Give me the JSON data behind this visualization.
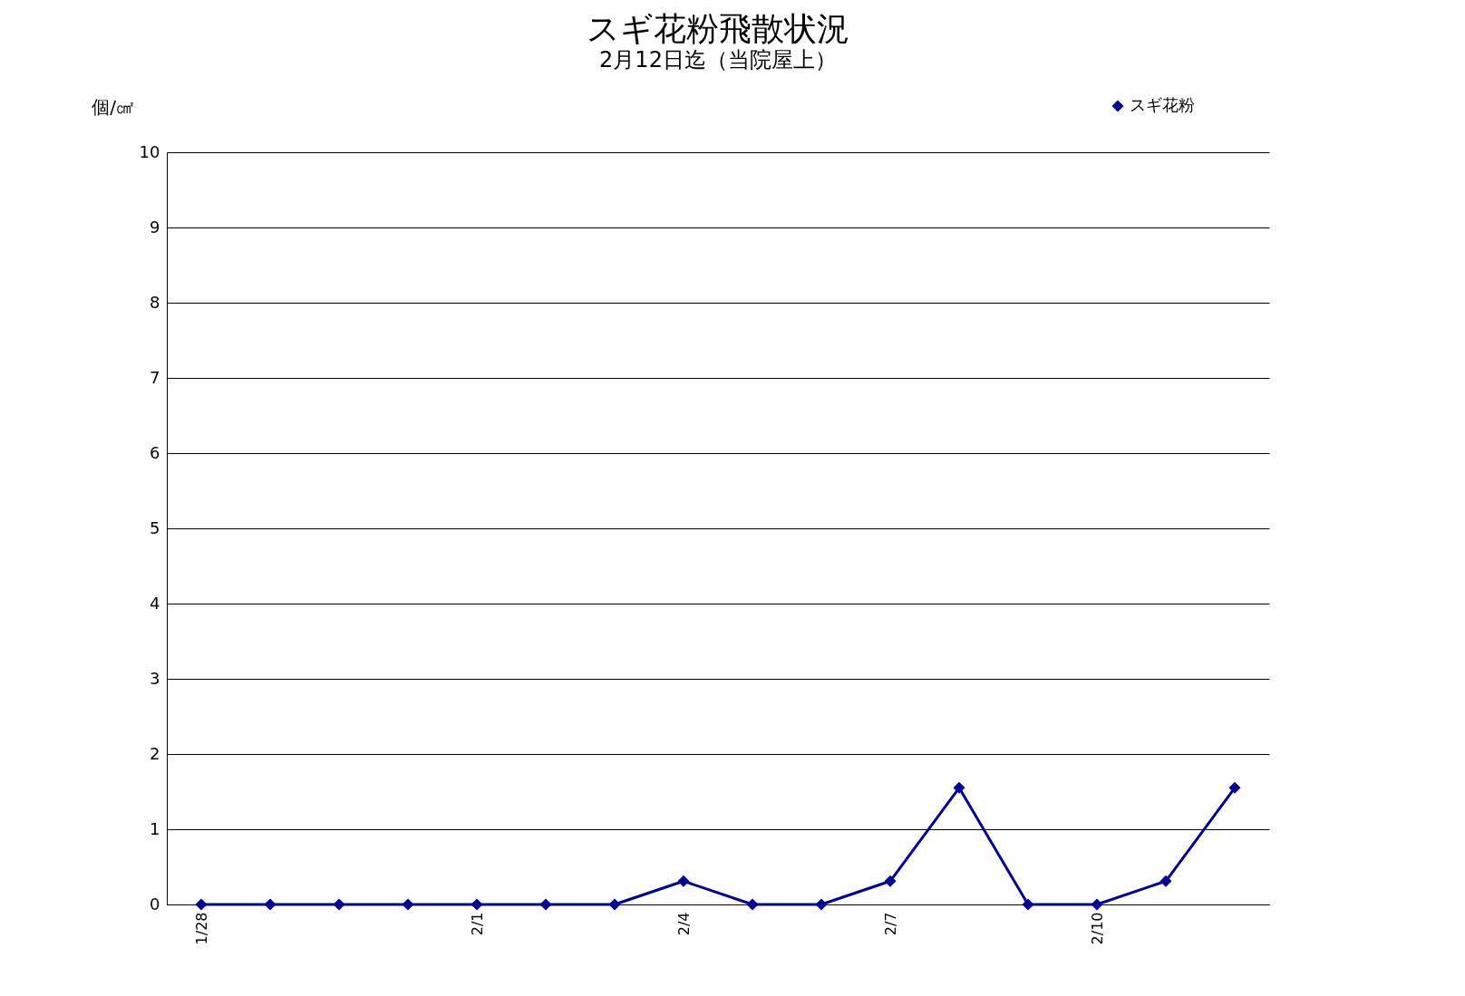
{
  "chart_data": {
    "type": "line",
    "title": "スギ花粉飛散状況",
    "subtitle": "2月12日迄（当院屋上）",
    "ylabel": "個/㎠",
    "categories": [
      "1/28",
      null,
      null,
      null,
      "2/1",
      null,
      null,
      "2/4",
      null,
      null,
      "2/7",
      null,
      null,
      "2/10",
      null,
      null
    ],
    "series": [
      {
        "name": "スギ花粉",
        "color": "#000099",
        "values": [
          0,
          0,
          0,
          0,
          0,
          0,
          0,
          0.31,
          0,
          0,
          0.31,
          1.55,
          0,
          0,
          0.31,
          1.55
        ]
      }
    ],
    "ylim": [
      0,
      10
    ],
    "yticks": [
      0,
      1,
      2,
      3,
      4,
      5,
      6,
      7,
      8,
      9,
      10
    ],
    "grid": "y",
    "legend": "top right",
    "marker": "diamond",
    "line_style": "solid"
  }
}
